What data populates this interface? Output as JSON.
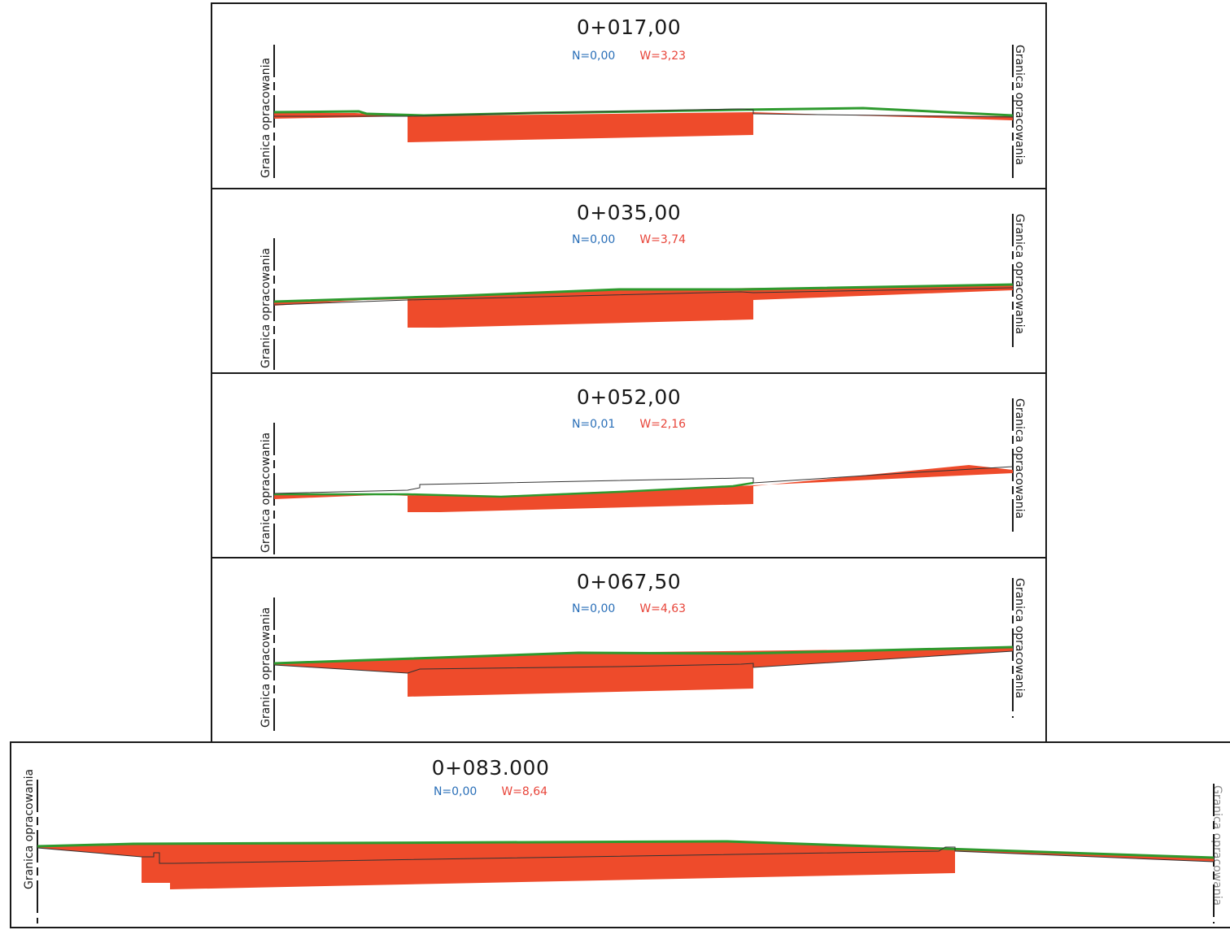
{
  "boundary_label": "Granica opracowania",
  "colors": {
    "fill": "#ee4b2b",
    "terrain": "#2e9a2e",
    "outline": "#333333",
    "n_color": "#2a6fb8",
    "w_color": "#e8453a"
  },
  "sections": [
    {
      "station": "0+017,00",
      "n": "N=0,00",
      "w": "W=3,23"
    },
    {
      "station": "0+035,00",
      "n": "N=0,00",
      "w": "W=3,74"
    },
    {
      "station": "0+052,00",
      "n": "N=0,01",
      "w": "W=2,16"
    },
    {
      "station": "0+067,50",
      "n": "N=0,00",
      "w": "W=4,63"
    },
    {
      "station": "0+083.000",
      "n": "N=0,00",
      "w": "W=8,64"
    }
  ]
}
